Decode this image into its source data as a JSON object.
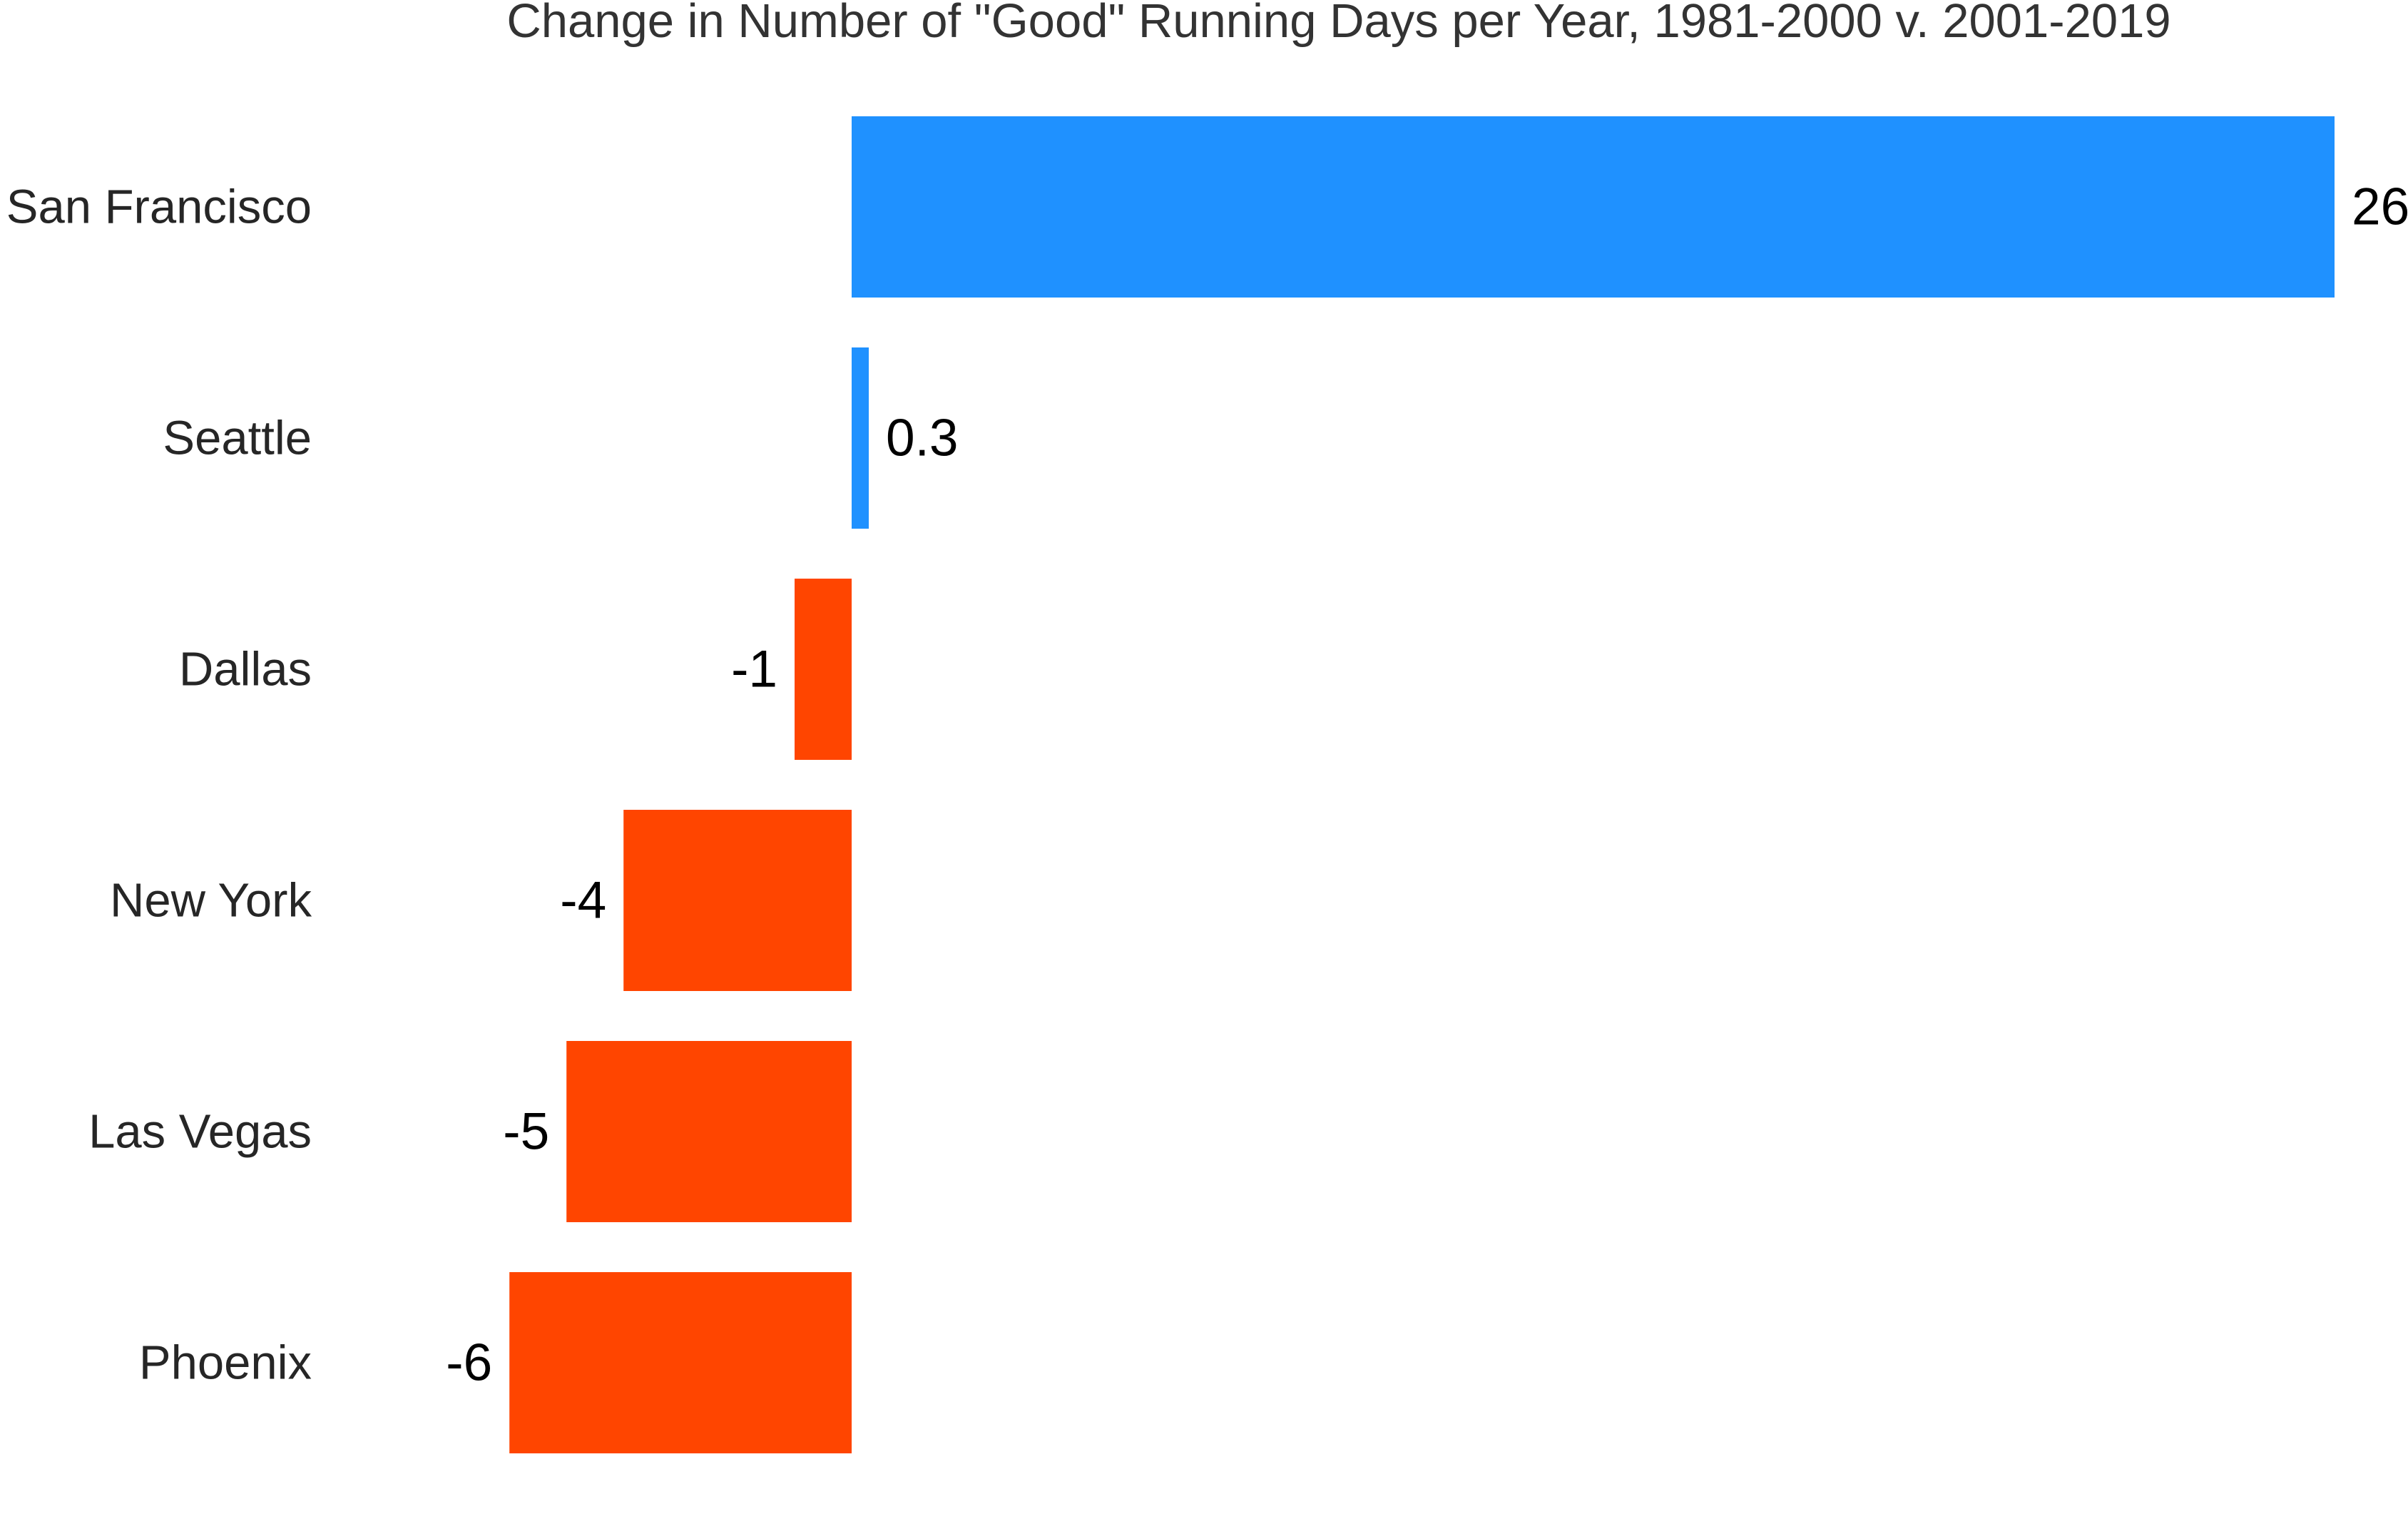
{
  "chart_data": {
    "type": "bar",
    "orientation": "horizontal",
    "title": "Change in Number of \"Good\" Running Days per Year, 1981-2000 v. 2001-2019",
    "categories": [
      "San Francisco",
      "Seattle",
      "Dallas",
      "New York",
      "Las Vegas",
      "Phoenix"
    ],
    "values": [
      26,
      0.3,
      -1,
      -4,
      -5,
      -6
    ],
    "value_labels": [
      "26",
      "0.3",
      "-1",
      "-4",
      "-5",
      "-6"
    ],
    "xlabel": "",
    "ylabel": "",
    "xlim": [
      -6,
      26
    ],
    "grid": false,
    "legend": "none",
    "colors": {
      "positive": "#1f91ff",
      "negative": "#ff4500"
    }
  }
}
